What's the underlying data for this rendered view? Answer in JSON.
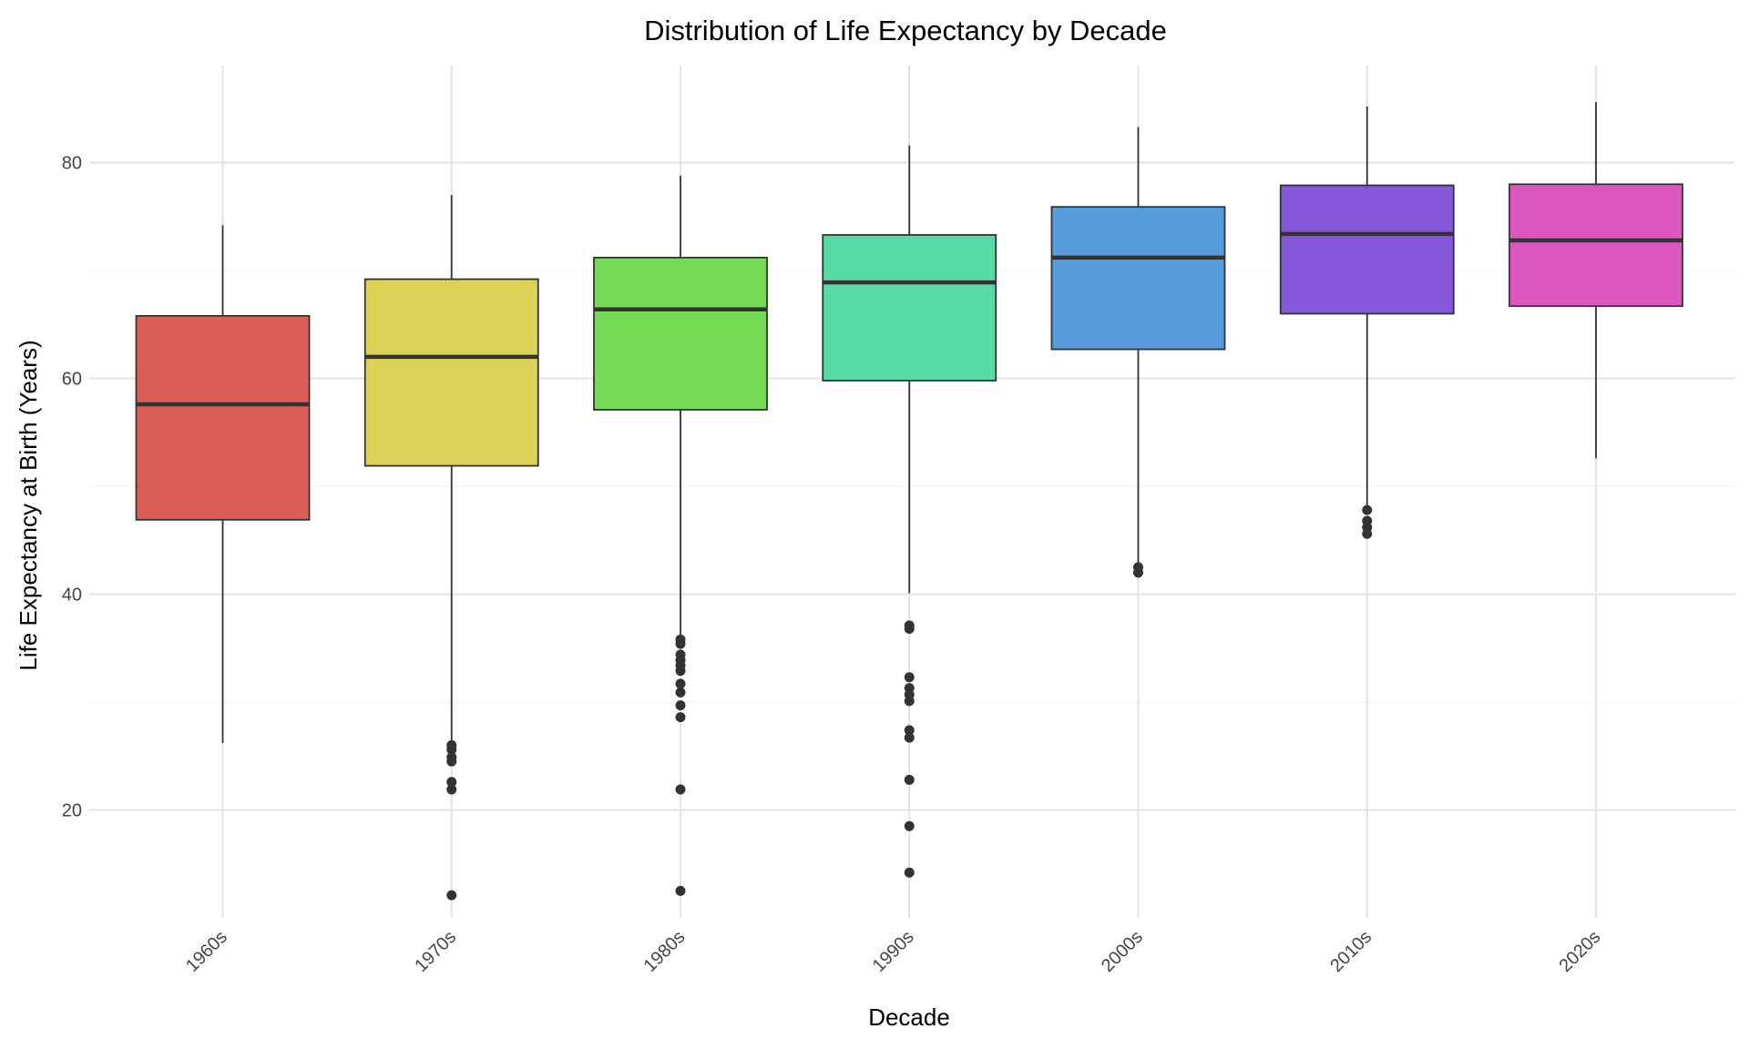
{
  "chart_data": {
    "type": "box",
    "title": "Distribution of Life Expectancy by Decade",
    "xlabel": "Decade",
    "ylabel": "Life Expectancy at Birth (Years)",
    "ylim": [
      10,
      89
    ],
    "yticks": [
      20,
      40,
      60,
      80
    ],
    "grid": true,
    "legend": "none",
    "categories": [
      "1960s",
      "1970s",
      "1980s",
      "1990s",
      "2000s",
      "2010s",
      "2020s"
    ],
    "colors": [
      "#db5f57",
      "#dbd157",
      "#75db57",
      "#57dba6",
      "#579cdb",
      "#8557db",
      "#db57bf"
    ],
    "boxes": [
      {
        "category": "1960s",
        "whisker_low": 26.2,
        "q1": 46.9,
        "median": 57.6,
        "q3": 65.8,
        "whisker_high": 74.2,
        "outliers": []
      },
      {
        "category": "1970s",
        "whisker_low": 26.3,
        "q1": 51.9,
        "median": 62.0,
        "q3": 69.2,
        "whisker_high": 77.0,
        "outliers": [
          26.0,
          25.6,
          24.9,
          24.5,
          22.6,
          21.9,
          12.1
        ]
      },
      {
        "category": "1980s",
        "whisker_low": 36.0,
        "q1": 57.1,
        "median": 66.4,
        "q3": 71.2,
        "whisker_high": 78.8,
        "outliers": [
          35.8,
          35.4,
          34.4,
          33.9,
          33.4,
          32.9,
          31.7,
          30.9,
          29.7,
          28.6,
          21.9,
          12.5
        ]
      },
      {
        "category": "1990s",
        "whisker_low": 40.1,
        "q1": 59.8,
        "median": 68.9,
        "q3": 73.3,
        "whisker_high": 81.6,
        "outliers": [
          37.1,
          36.8,
          32.3,
          31.3,
          30.7,
          30.1,
          27.4,
          26.7,
          22.8,
          18.5,
          14.2
        ]
      },
      {
        "category": "2000s",
        "whisker_low": 42.7,
        "q1": 62.7,
        "median": 71.2,
        "q3": 75.9,
        "whisker_high": 83.3,
        "outliers": [
          42.5,
          42.0
        ]
      },
      {
        "category": "2010s",
        "whisker_low": 48.1,
        "q1": 66.0,
        "median": 73.4,
        "q3": 77.9,
        "whisker_high": 85.2,
        "outliers": [
          47.8,
          46.8,
          46.2,
          45.6
        ]
      },
      {
        "category": "2020s",
        "whisker_low": 52.6,
        "q1": 66.7,
        "median": 72.8,
        "q3": 78.0,
        "whisker_high": 85.6,
        "outliers": []
      }
    ]
  }
}
